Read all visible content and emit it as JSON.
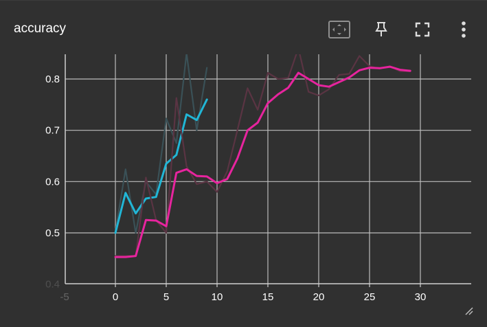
{
  "card": {
    "title": "accuracy",
    "icons": [
      "fit-domain-icon",
      "pin-icon",
      "fullscreen-icon",
      "more-vert-icon"
    ]
  },
  "chart_data": {
    "type": "line",
    "title": "",
    "xlabel": "",
    "ylabel": "",
    "xlim": [
      -5,
      30
    ],
    "ylim": [
      0.4,
      0.85
    ],
    "x_ticks": [
      "-5",
      "0",
      "5",
      "10",
      "15",
      "20",
      "25",
      "30"
    ],
    "y_ticks": [
      "0.4",
      "0.5",
      "0.6",
      "0.7",
      "0.8"
    ],
    "grid": true,
    "legend": "none",
    "series": [
      {
        "color": "#3a5157",
        "role": "raw",
        "x": [
          0,
          1,
          2,
          3,
          4,
          5,
          6,
          7,
          8,
          9
        ],
        "y": [
          0.502,
          0.624,
          0.5,
          0.6,
          0.575,
          0.723,
          0.675,
          0.85,
          0.7,
          0.822
        ]
      },
      {
        "color": "#21b6d6",
        "role": "smoothed",
        "x": [
          0,
          1,
          2,
          3,
          4,
          5,
          6,
          7,
          8,
          9
        ],
        "y": [
          0.5,
          0.578,
          0.538,
          0.567,
          0.57,
          0.635,
          0.652,
          0.731,
          0.72,
          0.76
        ]
      },
      {
        "color": "#5a3443",
        "role": "raw",
        "x": [
          0,
          1,
          2,
          3,
          4,
          5,
          6,
          7,
          8,
          9,
          10,
          11,
          12,
          13,
          14,
          15,
          16,
          17,
          18,
          19,
          20,
          21,
          22,
          23,
          24,
          25,
          26,
          27,
          28,
          29
        ],
        "y": [
          0.455,
          0.455,
          0.455,
          0.608,
          0.525,
          0.5,
          0.763,
          0.63,
          0.595,
          0.6,
          0.58,
          0.62,
          0.7,
          0.782,
          0.74,
          0.812,
          0.8,
          0.802,
          0.86,
          0.775,
          0.768,
          0.78,
          0.808,
          0.81,
          0.845,
          0.825,
          0.82,
          0.825,
          0.815,
          0.815
        ]
      },
      {
        "color": "#e7249e",
        "role": "smoothed",
        "x": [
          0,
          1,
          2,
          3,
          4,
          5,
          6,
          7,
          8,
          9,
          10,
          11,
          12,
          13,
          14,
          15,
          16,
          17,
          18,
          19,
          20,
          21,
          22,
          23,
          24,
          25,
          26,
          27,
          28,
          29
        ],
        "y": [
          0.453,
          0.453,
          0.455,
          0.525,
          0.524,
          0.513,
          0.617,
          0.624,
          0.611,
          0.61,
          0.597,
          0.605,
          0.645,
          0.7,
          0.715,
          0.753,
          0.77,
          0.783,
          0.812,
          0.8,
          0.788,
          0.785,
          0.794,
          0.803,
          0.817,
          0.822,
          0.821,
          0.824,
          0.818,
          0.816
        ]
      }
    ]
  }
}
